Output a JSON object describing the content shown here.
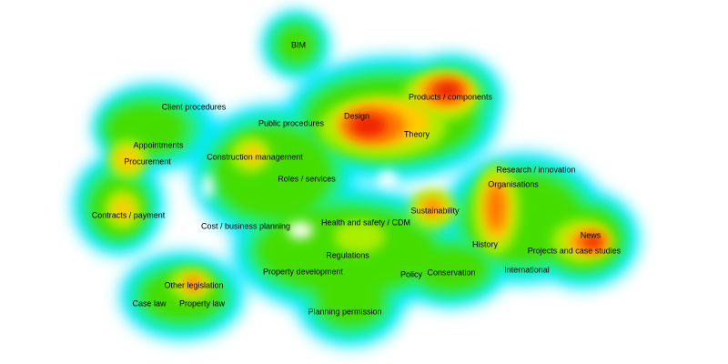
{
  "map": {
    "colors": {
      "halo": "#00e8ff",
      "outer": "#22ee88",
      "base": "#44dd00",
      "mid": "#aaee00",
      "warm": "#ffcc00",
      "hot": "#ff7700",
      "core": "#ee2200",
      "background": "#ffffff"
    },
    "labels": [
      "BIM",
      "Client procedures",
      "Public procedures",
      "Design",
      "Products / components",
      "Theory",
      "Appointments",
      "Procurement",
      "Construction management",
      "Roles / services",
      "Research / innovation",
      "Organisations",
      "Contracts / payment",
      "Cost / business planning",
      "Health and safety / CDM",
      "Sustainability",
      "News",
      "History",
      "Projects and case studies",
      "Regulations",
      "International",
      "Property development",
      "Policy",
      "Conservation",
      "Other legislation",
      "Case law",
      "Property law",
      "Planning permission"
    ]
  }
}
